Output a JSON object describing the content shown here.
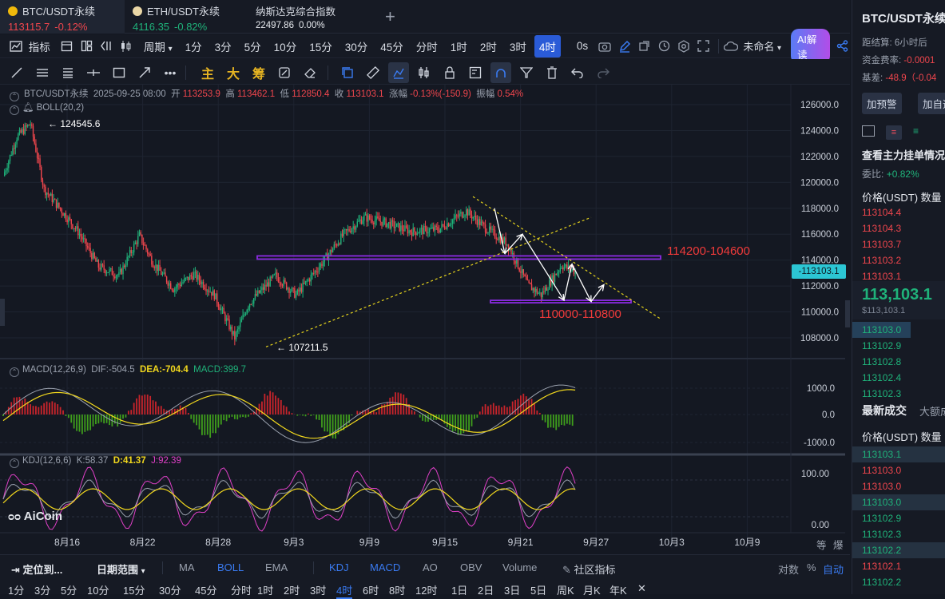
{
  "tabs": [
    {
      "name": "BTC/USDT永续",
      "price": "113115.7",
      "change": "-0.12%"
    },
    {
      "name": "ETH/USDT永续",
      "price": "4116.35",
      "change": "-0.82%"
    },
    {
      "name": "纳斯达克综合指数",
      "price": "22497.86",
      "change": "0.00%"
    }
  ],
  "add_tab": "+",
  "toolbar": {
    "indicators": "指标",
    "period": "周期",
    "intervals": [
      "1分",
      "3分",
      "5分",
      "10分",
      "15分",
      "30分",
      "45分",
      "分时",
      "1时",
      "2时",
      "3时",
      "4时"
    ],
    "active_interval": "4时",
    "seconds": "0s",
    "unnamed": "未命名",
    "ai_label": "AI解读"
  },
  "drawing_tools": {
    "main": "主",
    "big": "大",
    "chips": "筹"
  },
  "ohlc": {
    "symbol": "BTC/USDT永续",
    "date": "2025-09-25 08:00",
    "open_label": "开",
    "open": "113253.9",
    "high_label": "高",
    "high": "113462.1",
    "low_label": "低",
    "low": "112850.4",
    "close_label": "收",
    "close": "113103.1",
    "change_label": "涨幅",
    "change": "-0.13%(-150.9)",
    "amp_label": "振幅",
    "amp": "0.54%",
    "boll": "BOLL(20,2)"
  },
  "price_axis": [
    "126000.0",
    "124000.0",
    "122000.0",
    "120000.0",
    "118000.0",
    "116000.0",
    "114000.0",
    "112000.0",
    "110000.0",
    "108000.0"
  ],
  "current_price_tag": "113103.1",
  "annotations": {
    "high_marker": "124545.6",
    "low_marker": "107211.5",
    "resistance_zone": "114200-104600",
    "support_zone": "110000-110800"
  },
  "macd": {
    "label": "MACD(12,26,9)",
    "dif_label": "DIF:",
    "dif": "-504.5",
    "dea_label": "DEA:",
    "dea": "-704.4",
    "macd_label": "MACD:",
    "macd": "399.7",
    "axis": [
      "1000.0",
      "0.0",
      "-1000.0"
    ]
  },
  "kdj": {
    "label": "KDJ(12,6,6)",
    "k_label": "K:",
    "k": "58.37",
    "d_label": "D:",
    "d": "41.37",
    "j_label": "J:",
    "j": "92.39",
    "axis": [
      "100.00",
      "0.00"
    ]
  },
  "date_axis": [
    "8月16",
    "8月22",
    "8月28",
    "9月3",
    "9月9",
    "9月15",
    "9月21",
    "9月27",
    "10月3",
    "10月9"
  ],
  "scale_labels": {
    "equal": "等",
    "explode": "爆"
  },
  "watermark": "AiCoin",
  "bottom_bar": {
    "locate": "定位到...",
    "range": "日期范围",
    "main_inds": [
      "MA",
      "BOLL",
      "EMA"
    ],
    "sub_inds": [
      "KDJ",
      "MACD",
      "AO",
      "OBV",
      "Volume"
    ],
    "community": "社区指标",
    "log": "对数",
    "percent": "%",
    "auto": "自动"
  },
  "period_bar": [
    "1分",
    "3分",
    "5分",
    "10分",
    "15分",
    "30分",
    "45分",
    "分时",
    "1时",
    "2时",
    "3时",
    "4时",
    "6时",
    "8时",
    "12时",
    "1日",
    "2日",
    "3日",
    "5日",
    "周K",
    "月K",
    "年K"
  ],
  "period_bar_active": "4时",
  "right_panel": {
    "title": "BTC/USDT永续",
    "settle_label": "距结算:",
    "settle": "6小时后",
    "funding_label": "资金费率:",
    "funding": "-0.0001",
    "basis_label": "基差:",
    "basis": "-48.9（-0.04",
    "alert_btn": "加预警",
    "fav_btn": "加自选",
    "depth_title": "查看主力挂单情况",
    "ratio_label": "委比:",
    "ratio": "+0.82%",
    "book_header_price": "价格(USDT)",
    "book_header_qty": "数量",
    "asks": [
      "113104.4",
      "113104.3",
      "113103.7",
      "113103.2",
      "113103.1"
    ],
    "last_price": "113,103.1",
    "last_price_usd": "$113,103.1",
    "bids": [
      "113103.0",
      "113102.9",
      "113102.8",
      "113102.4",
      "113102.3"
    ],
    "trades_tab": "最新成交",
    "bigtrades_tab": "大额成交",
    "trades_header_price": "价格(USDT)",
    "trades_header_qty": "数量",
    "trades": [
      {
        "p": "113103.1",
        "c": "green"
      },
      {
        "p": "113103.0",
        "c": "red"
      },
      {
        "p": "113103.0",
        "c": "red"
      },
      {
        "p": "113103.0",
        "c": "green"
      },
      {
        "p": "113102.9",
        "c": "green"
      },
      {
        "p": "113102.3",
        "c": "green"
      },
      {
        "p": "113102.2",
        "c": "green"
      },
      {
        "p": "113102.1",
        "c": "red"
      },
      {
        "p": "113102.2",
        "c": "green"
      }
    ]
  },
  "colors": {
    "up": "#1fb27a",
    "down": "#f0464d",
    "accent": "#2a5bd7",
    "zone": "#8b2be2"
  }
}
